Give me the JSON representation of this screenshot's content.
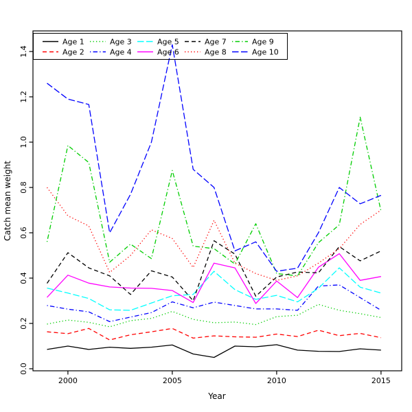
{
  "chart_data": {
    "type": "line",
    "title": "",
    "xlabel": "Year",
    "ylabel": "Catch mean weight",
    "grid": false,
    "legend_position": "top-left-inside",
    "legend_columns": 5,
    "xlim": [
      1999,
      2015
    ],
    "ylim": [
      0.0,
      1.43
    ],
    "x": [
      1999,
      2000,
      2001,
      2002,
      2003,
      2004,
      2005,
      2006,
      2007,
      2008,
      2009,
      2010,
      2011,
      2012,
      2013,
      2014,
      2015
    ],
    "xticks": [
      {
        "v": 2000,
        "label": "2000"
      },
      {
        "v": 2005,
        "label": "2005"
      },
      {
        "v": 2010,
        "label": "2010"
      },
      {
        "v": 2015,
        "label": "2015"
      }
    ],
    "yticks": [
      {
        "v": 0.0,
        "label": "0.0"
      },
      {
        "v": 0.2,
        "label": "0.2"
      },
      {
        "v": 0.4,
        "label": "0.4"
      },
      {
        "v": 0.6,
        "label": "0.6"
      },
      {
        "v": 0.8,
        "label": "0.8"
      },
      {
        "v": 1.0,
        "label": "1.0"
      },
      {
        "v": 1.2,
        "label": "1.2"
      },
      {
        "v": 1.4,
        "label": "1.4"
      }
    ],
    "series": [
      {
        "name": "Age 1",
        "color": "#000000",
        "dash": "solid",
        "values": [
          0.085,
          0.1,
          0.085,
          0.095,
          0.09,
          0.095,
          0.105,
          0.065,
          0.05,
          0.1,
          0.097,
          0.106,
          0.082,
          0.077,
          0.076,
          0.088,
          0.082
        ]
      },
      {
        "name": "Age 2",
        "color": "#FF0000",
        "dash": "dashed",
        "values": [
          0.163,
          0.155,
          0.178,
          0.127,
          0.15,
          0.163,
          0.178,
          0.135,
          0.145,
          0.141,
          0.139,
          0.153,
          0.142,
          0.17,
          0.146,
          0.156,
          0.137
        ]
      },
      {
        "name": "Age 3",
        "color": "#00CD00",
        "dash": "dotted",
        "values": [
          0.197,
          0.215,
          0.205,
          0.185,
          0.212,
          0.222,
          0.253,
          0.218,
          0.203,
          0.206,
          0.195,
          0.23,
          0.236,
          0.284,
          0.258,
          0.243,
          0.226
        ]
      },
      {
        "name": "Age 4",
        "color": "#0000FF",
        "dash": "dashdot",
        "values": [
          0.279,
          0.263,
          0.251,
          0.208,
          0.228,
          0.248,
          0.295,
          0.269,
          0.294,
          0.279,
          0.264,
          0.264,
          0.258,
          0.365,
          0.37,
          0.314,
          0.258
        ]
      },
      {
        "name": "Age 5",
        "color": "#00FFFF",
        "dash": "longdash",
        "values": [
          0.356,
          0.334,
          0.31,
          0.26,
          0.258,
          0.29,
          0.322,
          0.328,
          0.43,
          0.349,
          0.306,
          0.324,
          0.295,
          0.355,
          0.445,
          0.36,
          0.334
        ]
      },
      {
        "name": "Age 6",
        "color": "#FF00FF",
        "dash": "solid",
        "values": [
          0.315,
          0.413,
          0.378,
          0.361,
          0.356,
          0.355,
          0.345,
          0.292,
          0.466,
          0.445,
          0.288,
          0.387,
          0.314,
          0.448,
          0.508,
          0.39,
          0.407
        ]
      },
      {
        "name": "Age 7",
        "color": "#000000",
        "dash": "dashed",
        "values": [
          0.377,
          0.512,
          0.445,
          0.41,
          0.328,
          0.432,
          0.405,
          0.3,
          0.565,
          0.506,
          0.32,
          0.405,
          0.427,
          0.423,
          0.539,
          0.476,
          0.52
        ]
      },
      {
        "name": "Age 8",
        "color": "#FF0000",
        "dash": "dotted",
        "values": [
          0.8,
          0.675,
          0.63,
          0.425,
          0.5,
          0.613,
          0.575,
          0.447,
          0.655,
          0.466,
          0.42,
          0.39,
          0.41,
          0.466,
          0.53,
          0.637,
          0.7
        ]
      },
      {
        "name": "Age 9",
        "color": "#00CD00",
        "dash": "dashdot",
        "values": [
          0.56,
          0.985,
          0.91,
          0.47,
          0.55,
          0.486,
          0.875,
          0.541,
          0.53,
          0.462,
          0.64,
          0.42,
          0.41,
          0.556,
          0.635,
          1.11,
          0.695
        ]
      },
      {
        "name": "Age 10",
        "color": "#0000FF",
        "dash": "longdash",
        "values": [
          1.26,
          1.19,
          1.166,
          0.6,
          0.77,
          1.0,
          1.43,
          0.88,
          0.8,
          0.52,
          0.56,
          0.43,
          0.444,
          0.6,
          0.8,
          0.728,
          0.765
        ]
      }
    ]
  }
}
